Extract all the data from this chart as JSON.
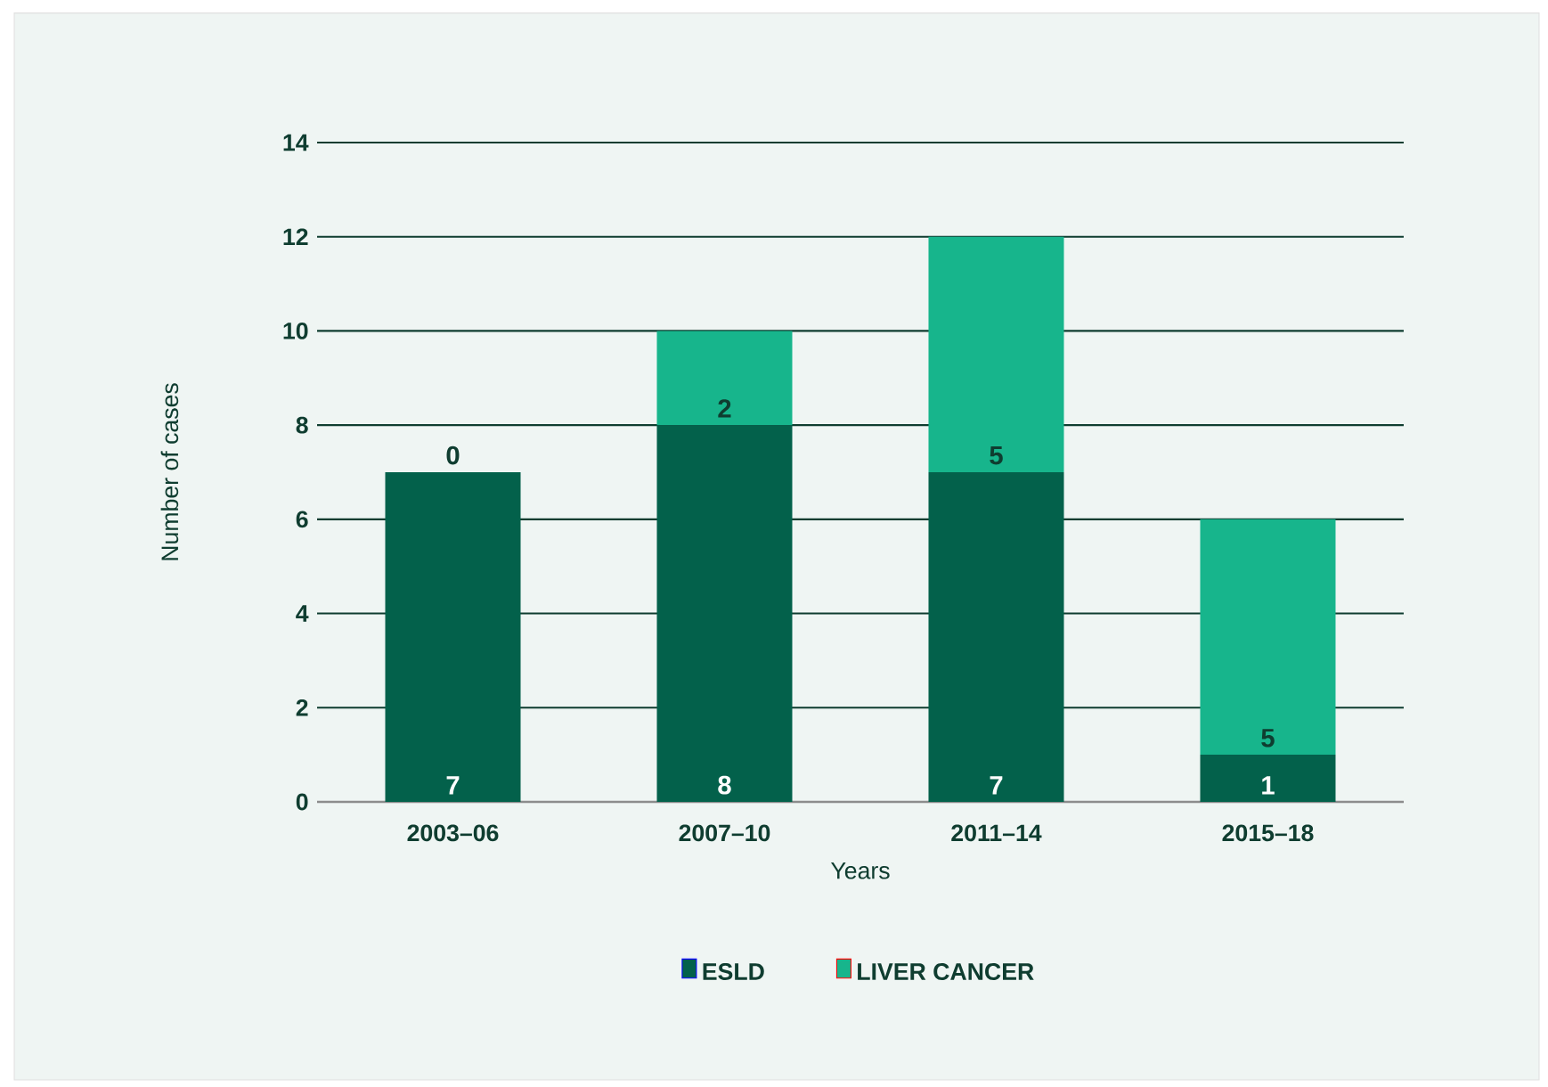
{
  "chart_data": {
    "type": "bar",
    "stacked": true,
    "xlabel": "Years",
    "ylabel": "Number of cases",
    "categories": [
      "2003–06",
      "2007–10",
      "2011–14",
      "2015–18"
    ],
    "series": [
      {
        "name": "ESLD",
        "color": "#03614b",
        "values": [
          7,
          8,
          7,
          1
        ]
      },
      {
        "name": "LIVER CANCER",
        "color": "#17b58c",
        "values": [
          0,
          2,
          5,
          5
        ]
      }
    ],
    "ylim": [
      0,
      14
    ],
    "yticks": [
      0,
      2,
      4,
      6,
      8,
      10,
      12,
      14
    ],
    "grid": "y",
    "legend": "bottom",
    "data_labels": true
  }
}
